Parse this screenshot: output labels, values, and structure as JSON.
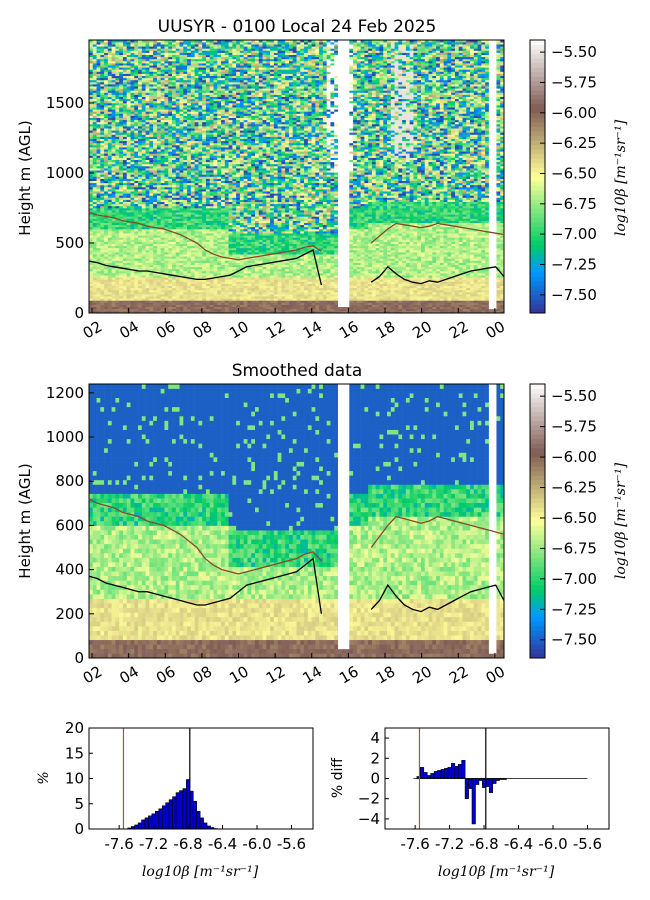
{
  "chart_data": [
    {
      "type": "heatmap",
      "title": "UUSYR - 0100 Local 24 Feb 2025",
      "ylabel": "Height m (AGL)",
      "x_ticks": [
        "02",
        "04",
        "06",
        "08",
        "10",
        "12",
        "14",
        "16",
        "18",
        "20",
        "22",
        "00"
      ],
      "y_ticks": [
        0,
        500,
        1000,
        1500
      ],
      "ylim": [
        0,
        1950
      ],
      "colorbar": {
        "label": "log10β [m⁻¹sr⁻¹]",
        "ticks": [
          "-5.50",
          "-5.75",
          "-6.00",
          "-6.25",
          "-6.50",
          "-6.75",
          "-7.00",
          "-7.25",
          "-7.50"
        ],
        "range": [
          -7.65,
          -5.4
        ]
      },
      "overlay_lines": [
        {
          "color": "#000000",
          "values_m": [
            370,
            360,
            340,
            330,
            320,
            310,
            300,
            300,
            290,
            280,
            270,
            260,
            250,
            240,
            240,
            250,
            260,
            270,
            300,
            330,
            340,
            350,
            360,
            370,
            380,
            390,
            420,
            450,
            200,
            null,
            null,
            null,
            null,
            null,
            220,
            260,
            330,
            280,
            240,
            220,
            210,
            230,
            220,
            240,
            260,
            280,
            300,
            310,
            320,
            330,
            260
          ]
        },
        {
          "color": "#8a4a2a",
          "values_m": [
            720,
            700,
            690,
            680,
            660,
            650,
            640,
            620,
            610,
            600,
            580,
            560,
            530,
            500,
            450,
            420,
            400,
            390,
            380,
            390,
            400,
            410,
            420,
            430,
            440,
            450,
            470,
            480,
            440,
            null,
            null,
            null,
            null,
            null,
            500,
            550,
            600,
            640,
            630,
            620,
            610,
            620,
            640,
            630,
            620,
            610,
            600,
            590,
            580,
            570,
            560
          ]
        }
      ]
    },
    {
      "type": "heatmap",
      "title": "Smoothed data",
      "ylabel": "Height m (AGL)",
      "x_ticks": [
        "02",
        "04",
        "06",
        "08",
        "10",
        "12",
        "14",
        "16",
        "18",
        "20",
        "22",
        "00"
      ],
      "y_ticks": [
        0,
        200,
        400,
        600,
        800,
        1000,
        1200
      ],
      "ylim": [
        0,
        1240
      ],
      "colorbar": {
        "label": "log10β [m⁻¹sr⁻¹]",
        "ticks": [
          "-5.50",
          "-5.75",
          "-6.00",
          "-6.25",
          "-6.50",
          "-6.75",
          "-7.00",
          "-7.25",
          "-7.50"
        ],
        "range": [
          -7.65,
          -5.4
        ]
      }
    },
    {
      "type": "bar",
      "ylabel": "%",
      "xlabel": "log10β [m⁻¹sr⁻¹]",
      "x_ticks": [
        "-7.6",
        "-7.2",
        "-6.8",
        "-6.4",
        "-6.0",
        "-5.6"
      ],
      "y_ticks": [
        "0",
        "5",
        "10",
        "15",
        "20"
      ],
      "ylim": [
        0,
        20
      ],
      "xlim": [
        -7.95,
        -5.35
      ],
      "bin_start": -7.62,
      "bin_width": 0.04,
      "values": [
        0,
        0,
        0,
        0.2,
        0.5,
        0.8,
        1.2,
        1.8,
        2.2,
        2.6,
        3.0,
        3.5,
        4.0,
        4.6,
        5.2,
        5.8,
        6.4,
        7.2,
        7.6,
        8.0,
        9.8,
        7.5,
        5.5,
        3.5,
        2.2,
        1.2,
        0.6,
        0.3,
        0.1
      ],
      "vlines": [
        {
          "x": -7.55,
          "color": "#b5522a"
        },
        {
          "x": -6.78,
          "color": "#000000"
        }
      ]
    },
    {
      "type": "bar",
      "ylabel": "% diff",
      "xlabel": "log10β [m⁻¹sr⁻¹]",
      "x_ticks": [
        "-7.6",
        "-7.2",
        "-6.8",
        "-6.4",
        "-6.0",
        "-5.6"
      ],
      "y_ticks": [
        "4",
        "2",
        "0",
        "−2",
        "−4"
      ],
      "ylim": [
        -5,
        5
      ],
      "xlim": [
        -7.95,
        -5.35
      ],
      "bin_start": -7.62,
      "bin_width": 0.04,
      "values": [
        0,
        0.2,
        1.1,
        0.6,
        0.3,
        0.5,
        0.7,
        0.8,
        0.9,
        1.0,
        1.1,
        1.5,
        1.2,
        1.4,
        1.8,
        -2.0,
        -1.0,
        -4.5,
        -0.6,
        -0.2,
        -0.9,
        -0.8,
        -1.4,
        -0.5,
        -0.2,
        -0.1,
        -0.1,
        0,
        0,
        0,
        0,
        0,
        0,
        0,
        0,
        0,
        0,
        0,
        0,
        0
      ],
      "vlines": [
        {
          "x": -7.55,
          "color": "#b5522a"
        },
        {
          "x": -6.78,
          "color": "#000000"
        }
      ]
    }
  ]
}
